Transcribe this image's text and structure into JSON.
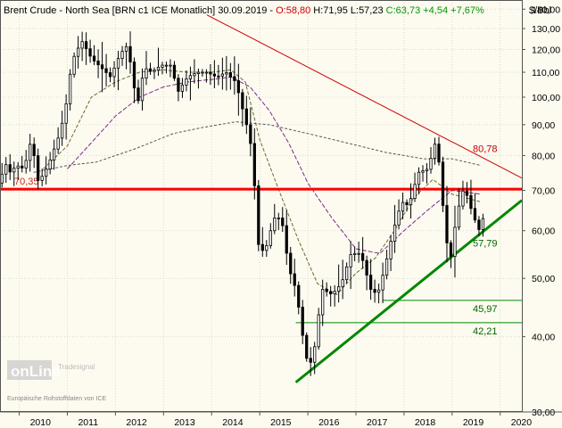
{
  "header": {
    "instrument": "Brent Crude - North Sea [BRN c1 ICE  Monatlich] 30.09.2019 - ",
    "open": "O:58,80",
    "high": "H:71,95",
    "low": "L:57,23",
    "close": "C:63,73",
    "change": "+4,54",
    "change_pct": "+7,67%",
    "unit": "$/Bbl"
  },
  "watermark": {
    "logo_text": "onLine",
    "brand": "Tradesignal",
    "source": "Europäische Rohstoffdaten von ICE"
  },
  "colors": {
    "background": "#fdfbf0",
    "grid": "#d8d8d8",
    "candle": "#000000",
    "resistance": "#cc0000",
    "horizontal_level": "#ff0000",
    "support": "#008800",
    "ma_short": "#6b6b2a",
    "ma_mid": "#7a2a8a",
    "ma_long": "#555555",
    "header_red": "#cc0000",
    "header_green": "#009900"
  },
  "chart_data": {
    "type": "candlestick",
    "y_scale": "log",
    "ylim": [
      30,
      145
    ],
    "y_ticks": [
      30,
      40,
      50,
      60,
      70,
      80,
      90,
      100,
      110,
      120,
      130,
      140
    ],
    "y_tick_labels": [
      "30,00",
      "40,00",
      "50,00",
      "60,00",
      "70,00",
      "80,00",
      "90,00",
      "100,00",
      "110,00",
      "120,00",
      "130,00",
      "140,00"
    ],
    "x_range": [
      2009.6,
      2020.45
    ],
    "x_ticks": [
      2010,
      2011,
      2012,
      2013,
      2014,
      2015,
      2016,
      2017,
      2018,
      2019,
      2020
    ],
    "x_tick_labels": [
      "2010",
      "2011",
      "2012",
      "2013",
      "2014",
      "2015",
      "2016",
      "2017",
      "2018",
      "2019",
      "2020"
    ],
    "anchors": [
      [
        2009.6,
        72
      ],
      [
        2009.7,
        78
      ],
      [
        2009.8,
        75
      ],
      [
        2009.95,
        77
      ],
      [
        2010.1,
        76
      ],
      [
        2010.25,
        85
      ],
      [
        2010.4,
        72
      ],
      [
        2010.6,
        77
      ],
      [
        2010.8,
        85
      ],
      [
        2010.95,
        94
      ],
      [
        2011.1,
        115
      ],
      [
        2011.3,
        124
      ],
      [
        2011.5,
        116
      ],
      [
        2011.7,
        112
      ],
      [
        2011.9,
        108
      ],
      [
        2012.1,
        118
      ],
      [
        2012.25,
        122
      ],
      [
        2012.45,
        96
      ],
      [
        2012.6,
        112
      ],
      [
        2012.75,
        110
      ],
      [
        2012.95,
        113
      ],
      [
        2013.15,
        113
      ],
      [
        2013.3,
        102
      ],
      [
        2013.5,
        108
      ],
      [
        2013.7,
        110
      ],
      [
        2013.9,
        110
      ],
      [
        2014.1,
        108
      ],
      [
        2014.3,
        110
      ],
      [
        2014.5,
        106
      ],
      [
        2014.65,
        95
      ],
      [
        2014.8,
        85
      ],
      [
        2014.9,
        70
      ],
      [
        2014.97,
        57
      ],
      [
        2015.1,
        55
      ],
      [
        2015.3,
        63
      ],
      [
        2015.45,
        63
      ],
      [
        2015.6,
        52
      ],
      [
        2015.75,
        48
      ],
      [
        2015.95,
        37
      ],
      [
        2016.1,
        36
      ],
      [
        2016.3,
        48
      ],
      [
        2016.5,
        47
      ],
      [
        2016.7,
        49
      ],
      [
        2016.9,
        55
      ],
      [
        2017.1,
        55
      ],
      [
        2017.3,
        48
      ],
      [
        2017.45,
        47
      ],
      [
        2017.6,
        52
      ],
      [
        2017.8,
        61
      ],
      [
        2017.95,
        67
      ],
      [
        2018.1,
        66
      ],
      [
        2018.3,
        75
      ],
      [
        2018.5,
        76
      ],
      [
        2018.65,
        84
      ],
      [
        2018.75,
        76
      ],
      [
        2018.85,
        59
      ],
      [
        2018.97,
        54
      ],
      [
        2019.1,
        64
      ],
      [
        2019.25,
        71
      ],
      [
        2019.4,
        65
      ],
      [
        2019.55,
        60
      ],
      [
        2019.67,
        63.73
      ]
    ],
    "lines": {
      "horizontal": {
        "value": 70.35,
        "label": "70,35"
      },
      "resistance": {
        "from": [
          2013.9,
          137
        ],
        "to": [
          2020.45,
          73.4
        ],
        "label": "80,78"
      },
      "support": {
        "from": [
          2015.75,
          33.6
        ],
        "to": [
          2020.45,
          67.4
        ],
        "label": "57,79"
      },
      "level_1": {
        "value": 45.97,
        "from_x": 2017.55,
        "label": "45,97"
      },
      "level_2": {
        "value": 42.21,
        "from_x": 2015.75,
        "label": "42,21"
      }
    },
    "moving_averages": {
      "short": [
        [
          2010.5,
          76
        ],
        [
          2011.0,
          83
        ],
        [
          2011.5,
          100
        ],
        [
          2012.0,
          106
        ],
        [
          2012.5,
          110
        ],
        [
          2013.0,
          111
        ],
        [
          2013.5,
          110
        ],
        [
          2014.0,
          110
        ],
        [
          2014.4,
          111
        ],
        [
          2014.7,
          106
        ],
        [
          2015.0,
          85
        ],
        [
          2015.4,
          70
        ],
        [
          2015.8,
          58
        ],
        [
          2016.2,
          49
        ],
        [
          2016.6,
          47
        ],
        [
          2017.0,
          51
        ],
        [
          2017.4,
          54
        ],
        [
          2017.8,
          60
        ],
        [
          2018.2,
          68
        ],
        [
          2018.6,
          73
        ],
        [
          2019.0,
          69
        ],
        [
          2019.6,
          67
        ]
      ],
      "mid": [
        [
          2011.0,
          76
        ],
        [
          2011.5,
          84
        ],
        [
          2012.0,
          93
        ],
        [
          2012.5,
          100
        ],
        [
          2013.0,
          104
        ],
        [
          2013.5,
          106
        ],
        [
          2014.0,
          107
        ],
        [
          2014.4,
          108
        ],
        [
          2014.8,
          104
        ],
        [
          2015.2,
          95
        ],
        [
          2015.6,
          84
        ],
        [
          2016.0,
          72
        ],
        [
          2016.5,
          63
        ],
        [
          2017.0,
          56
        ],
        [
          2017.5,
          55
        ],
        [
          2018.0,
          60
        ],
        [
          2018.5,
          65
        ],
        [
          2019.0,
          70
        ],
        [
          2019.6,
          69
        ]
      ],
      "long": [
        [
          2010.3,
          75
        ],
        [
          2011.0,
          77
        ],
        [
          2011.6,
          78
        ],
        [
          2012.4,
          82
        ],
        [
          2013.2,
          87
        ],
        [
          2013.8,
          89
        ],
        [
          2014.5,
          91
        ],
        [
          2015.2,
          90
        ],
        [
          2016.0,
          87
        ],
        [
          2016.8,
          84
        ],
        [
          2017.6,
          81
        ],
        [
          2018.4,
          79
        ],
        [
          2019.0,
          79
        ],
        [
          2019.6,
          77
        ]
      ]
    }
  }
}
